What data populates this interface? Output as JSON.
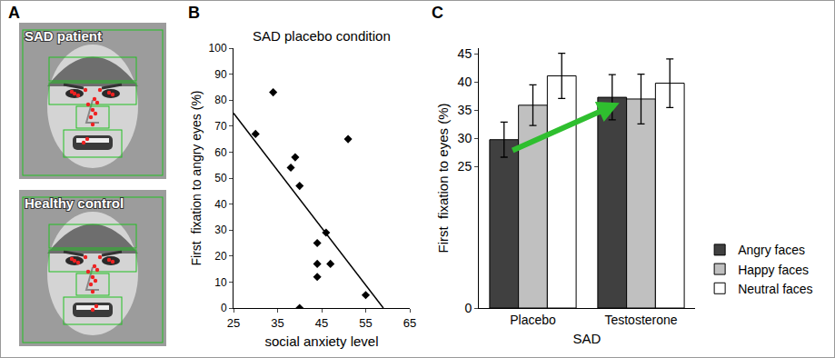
{
  "panel_letters": [
    "A",
    "B",
    "C"
  ],
  "panel_a": {
    "type": "image",
    "labels": [
      "SAD patient",
      "Healthy control"
    ]
  },
  "chart_data": [
    {
      "type": "scatter",
      "title": "SAD placebo condition",
      "x_label": "social anxiety level",
      "y_label": "First  fixation to angry eyes (%)",
      "xlim": [
        25,
        65
      ],
      "xticks": [
        25,
        35,
        45,
        55,
        65
      ],
      "ylim": [
        0,
        100
      ],
      "yticks": [
        0,
        10,
        20,
        30,
        40,
        50,
        60,
        70,
        80,
        90,
        100
      ],
      "grid": false,
      "series": [
        {
          "type": "scatter",
          "marker": "diamond",
          "color": "#000000",
          "x": [
            30,
            34,
            38,
            39,
            40,
            40,
            44,
            44,
            44,
            46,
            47,
            51,
            55
          ],
          "values": [
            67,
            83,
            54,
            58,
            47,
            0,
            25,
            17,
            12,
            29,
            17,
            65,
            5
          ]
        },
        {
          "type": "line",
          "line_style": "solid",
          "color": "#000000",
          "x": [
            25,
            59
          ],
          "values": [
            75,
            0
          ]
        }
      ]
    },
    {
      "type": "bar",
      "x_label": "SAD",
      "y_label": "First  fixation to eyes (%)",
      "categories": [
        "Placebo",
        "Testosterone"
      ],
      "ylim": [
        0,
        46
      ],
      "yticks": [
        0,
        25,
        30,
        35,
        40,
        45
      ],
      "grid": false,
      "legend": "right",
      "series": [
        {
          "name": "Angry faces",
          "color": "#404040",
          "values": [
            29.8,
            37.3
          ],
          "errors": [
            3.1,
            4.0
          ]
        },
        {
          "name": "Happy faces",
          "color": "#c0c0c0",
          "values": [
            35.9,
            37.0
          ],
          "errors": [
            3.6,
            4.4
          ]
        },
        {
          "name": "Neutral faces",
          "color": "#ffffff",
          "values": [
            41.1,
            39.8
          ],
          "errors": [
            4.0,
            4.3
          ]
        }
      ]
    }
  ]
}
